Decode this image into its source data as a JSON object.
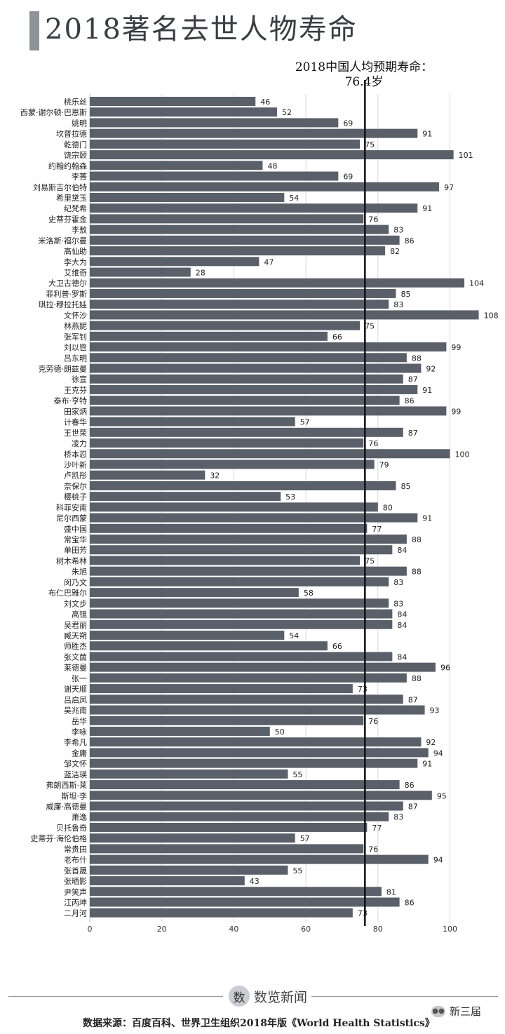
{
  "page": {
    "title": "2018著名去世人物寿命",
    "reference_label_line1": "2018中国人均预期寿命：",
    "reference_label_line2": "76.4岁",
    "brand": "数览新闻",
    "brand_icon_char": "数",
    "source": "数据来源：百度百科、世界卫生组织2018年版《World Health Statistics》",
    "wechat_label": "新三届",
    "wechat_icon": "wechat-bubble-icon",
    "colors": {
      "bar": "#5a606a",
      "reference_line": "#111111",
      "grid": "#d9d9d9",
      "title_bar": "#8e9299"
    }
  },
  "chart_data": {
    "type": "bar",
    "orientation": "horizontal",
    "title": "2018著名去世人物寿命",
    "xlabel": "",
    "ylabel": "",
    "xlim": [
      0,
      108
    ],
    "xticks": [
      0,
      20,
      40,
      60,
      80,
      100
    ],
    "grid": true,
    "reference_line": {
      "value": 76.4,
      "label": "2018中国人均预期寿命：76.4岁"
    },
    "categories": [
      "桃乐丝",
      "西蒙·谢尔顿·巴恩斯",
      "姚明",
      "坎普拉德",
      "乾德门",
      "饶宗颐",
      "约翰约翰森",
      "李菁",
      "刘易斯吉尔伯特",
      "希里黛玉",
      "纪梵希",
      "史蒂芬霍金",
      "李敖",
      "米洛斯·福尔曼",
      "高仙助",
      "李大为",
      "艾维奇",
      "大卫古德尔",
      "菲利普·罗斯",
      "琪拉·穆拉托娃",
      "文怀沙",
      "林燕妮",
      "张军钊",
      "刘以鬯",
      "吕东明",
      "克劳德·朗兹曼",
      "徐宣",
      "王克芬",
      "泰布·亨特",
      "田家炳",
      "计春华",
      "王世荣",
      "凌力",
      "桥本忍",
      "沙叶新",
      "卢凯彤",
      "奈保尔",
      "樱桃子",
      "科菲安南",
      "尼尔西蒙",
      "盛中国",
      "常宝华",
      "单田芳",
      "树木希林",
      "朱旭",
      "闵乃文",
      "布仁巴雅尔",
      "刘文步",
      "高锟",
      "吴君丽",
      "臧天朔",
      "师胜杰",
      "张文茵",
      "莱德曼",
      "张一",
      "谢天顺",
      "吕启凤",
      "吴兆南",
      "岳华",
      "李咏",
      "李希凡",
      "金庸",
      "邹文怀",
      "蓝洁瑛",
      "弗朗西斯·莱",
      "斯坦·李",
      "威廉·高德曼",
      "萧逸",
      "贝托鲁奇",
      "史蒂芬·海伦伯格",
      "常贵田",
      "老布什",
      "张首晟",
      "张晒影",
      "尹笑声",
      "江丙坤",
      "二月河"
    ],
    "values": [
      46,
      52,
      69,
      91,
      75,
      101,
      48,
      69,
      97,
      54,
      91,
      76,
      83,
      86,
      82,
      47,
      28,
      104,
      85,
      83,
      108,
      75,
      66,
      99,
      88,
      92,
      87,
      91,
      86,
      99,
      57,
      87,
      76,
      100,
      79,
      32,
      85,
      53,
      80,
      91,
      77,
      88,
      84,
      75,
      88,
      83,
      58,
      83,
      84,
      84,
      54,
      66,
      84,
      96,
      88,
      73,
      87,
      93,
      76,
      50,
      92,
      94,
      91,
      55,
      86,
      95,
      87,
      83,
      77,
      57,
      76,
      94,
      55,
      43,
      81,
      86,
      73
    ]
  }
}
